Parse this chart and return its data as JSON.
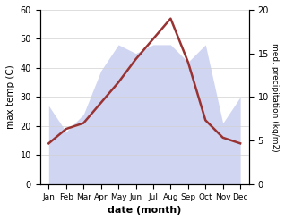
{
  "months": [
    "Jan",
    "Feb",
    "Mar",
    "Apr",
    "May",
    "Jun",
    "Jul",
    "Aug",
    "Sep",
    "Oct",
    "Nov",
    "Dec"
  ],
  "temp": [
    14,
    19,
    21,
    28,
    35,
    43,
    50,
    57,
    42,
    22,
    16,
    14
  ],
  "precip_kg": [
    9,
    6,
    8,
    13,
    16,
    15,
    16,
    16,
    14,
    16,
    7,
    10
  ],
  "temp_color": "#993333",
  "precip_color": "#aab4e8",
  "precip_alpha": 0.55,
  "ylim_left": [
    0,
    60
  ],
  "ylim_right": [
    0,
    20
  ],
  "xlabel": "date (month)",
  "ylabel_left": "max temp (C)",
  "ylabel_right": "med. precipitation (kg/m2)",
  "bg_color": "#ffffff",
  "grid_color": "#d0d0d0"
}
